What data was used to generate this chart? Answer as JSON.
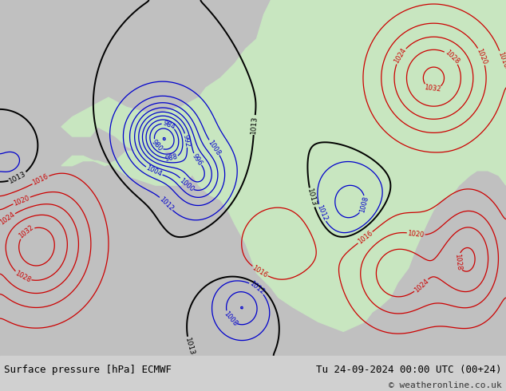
{
  "title_left": "Surface pressure [hPa] ECMWF",
  "title_right": "Tu 24-09-2024 00:00 UTC (00+24)",
  "copyright": "© weatheronline.co.uk",
  "bg_color": "#d0d0d0",
  "land_color": "#c8e6c0",
  "ocean_color": "#c8c8c8",
  "font_size_title": 9,
  "font_size_copyright": 8,
  "blue_color": "#0000cc",
  "red_color": "#cc0000",
  "black_color": "#000000",
  "xlim": [
    -185,
    -45
  ],
  "ylim": [
    15,
    88
  ]
}
